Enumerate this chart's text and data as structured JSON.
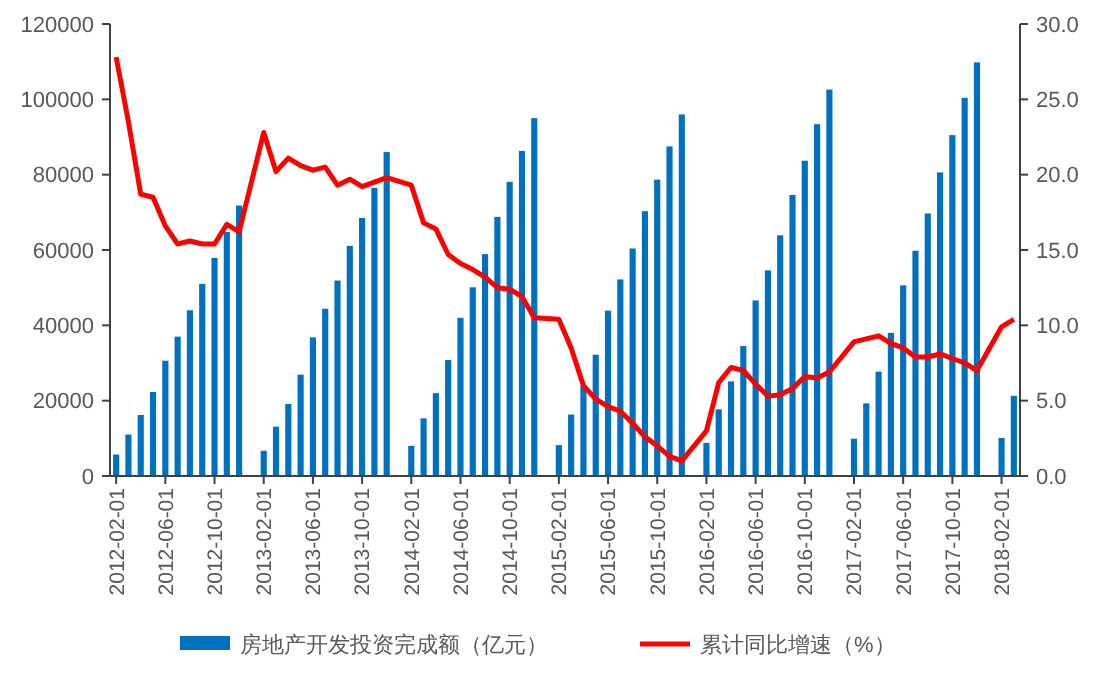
{
  "chart_data": {
    "type": "bar",
    "categories": [
      "2012-02-01",
      null,
      null,
      null,
      "2012-06-01",
      null,
      null,
      null,
      "2012-10-01",
      null,
      null,
      null,
      "2013-02-01",
      null,
      null,
      null,
      "2013-06-01",
      null,
      null,
      null,
      "2013-10-01",
      null,
      null,
      null,
      "2014-02-01",
      null,
      null,
      null,
      "2014-06-01",
      null,
      null,
      null,
      "2014-10-01",
      null,
      null,
      null,
      "2015-02-01",
      null,
      null,
      null,
      "2015-06-01",
      null,
      null,
      null,
      "2015-10-01",
      null,
      null,
      null,
      "2016-02-01",
      null,
      null,
      null,
      "2016-06-01",
      null,
      null,
      null,
      "2016-10-01",
      null,
      null,
      null,
      "2017-02-01",
      null,
      null,
      null,
      "2017-06-01",
      null,
      null,
      null,
      "2017-10-01",
      null,
      null,
      null,
      "2018-02-01",
      null
    ],
    "series": [
      {
        "name": "房地产开发投资完成额（亿元）",
        "color": "#0070c0",
        "values": [
          5700,
          11000,
          16200,
          22300,
          30600,
          37000,
          44000,
          51000,
          57900,
          64800,
          71800,
          null,
          6700,
          13100,
          19100,
          26900,
          36800,
          44400,
          51900,
          61100,
          68500,
          76500,
          86000,
          null,
          8000,
          15300,
          22000,
          30800,
          42000,
          50100,
          58900,
          68800,
          78100,
          86300,
          95000,
          null,
          8200,
          16300,
          24000,
          32200,
          43900,
          52200,
          60400,
          70300,
          78700,
          87500,
          96000,
          null,
          8800,
          17700,
          25100,
          34500,
          46600,
          54600,
          63900,
          74600,
          83700,
          93400,
          102600,
          null,
          9900,
          19300,
          27700,
          38000,
          50600,
          59800,
          69700,
          80600,
          90500,
          100400,
          109800,
          null,
          10100,
          21300
        ]
      },
      {
        "name": "累计同比增速（%）",
        "type": "line",
        "axis": "y2",
        "color": "#ff0000",
        "values": [
          27.8,
          23.5,
          18.7,
          18.5,
          16.6,
          15.4,
          15.6,
          15.4,
          15.4,
          16.7,
          16.2,
          null,
          22.8,
          20.2,
          21.1,
          20.6,
          20.3,
          20.5,
          19.3,
          19.7,
          19.2,
          19.5,
          19.8,
          null,
          19.3,
          16.8,
          16.4,
          14.7,
          14.1,
          13.7,
          13.2,
          12.5,
          12.4,
          11.9,
          10.5,
          null,
          10.4,
          8.5,
          6.0,
          5.1,
          4.6,
          4.3,
          3.5,
          2.6,
          2.0,
          1.3,
          1.0,
          null,
          3.0,
          6.2,
          7.2,
          7.0,
          6.1,
          5.3,
          5.4,
          5.8,
          6.6,
          6.5,
          6.9,
          null,
          8.9,
          9.1,
          9.3,
          8.8,
          8.5,
          7.9,
          7.9,
          8.1,
          7.8,
          7.5,
          7.0,
          null,
          9.9,
          10.4
        ]
      }
    ],
    "ylim": [
      0,
      120000
    ],
    "yticks": [
      0,
      20000,
      40000,
      60000,
      80000,
      100000,
      120000
    ],
    "y2lim": [
      0,
      30
    ],
    "y2ticks": [
      {
        "value": 0,
        "label": "0.0"
      },
      {
        "value": 5,
        "label": "5.0"
      },
      {
        "value": 10,
        "label": "10.0"
      },
      {
        "value": 15,
        "label": "15.0"
      },
      {
        "value": 20,
        "label": "20.0"
      },
      {
        "value": 25,
        "label": "25.0"
      },
      {
        "value": 30,
        "label": "30.0"
      }
    ],
    "grid": false,
    "legend": "bottom",
    "marker": "none",
    "line_style": "solid"
  }
}
